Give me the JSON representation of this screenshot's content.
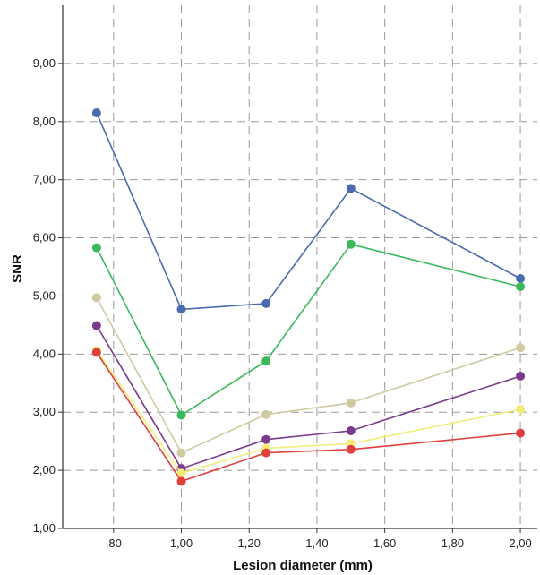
{
  "chart_data": {
    "type": "line",
    "title": "",
    "xlabel": "Lesion diameter (mm)",
    "ylabel": "SNR",
    "x": [
      0.75,
      1.0,
      1.25,
      1.5,
      2.0
    ],
    "xlim": [
      0.65,
      2.05
    ],
    "ylim": [
      1.0,
      10.0
    ],
    "x_ticks": [
      {
        "value": 0.8,
        "label": ",80"
      },
      {
        "value": 1.0,
        "label": "1,00"
      },
      {
        "value": 1.2,
        "label": "1,20"
      },
      {
        "value": 1.4,
        "label": "1,40"
      },
      {
        "value": 1.6,
        "label": "1,60"
      },
      {
        "value": 1.8,
        "label": "1,80"
      },
      {
        "value": 2.0,
        "label": "2,00"
      }
    ],
    "y_ticks": [
      {
        "value": 1,
        "label": "1,00"
      },
      {
        "value": 2,
        "label": "2,00"
      },
      {
        "value": 3,
        "label": "3,00"
      },
      {
        "value": 4,
        "label": "4,00"
      },
      {
        "value": 5,
        "label": "5,00"
      },
      {
        "value": 6,
        "label": "6,00"
      },
      {
        "value": 7,
        "label": "7,00"
      },
      {
        "value": 8,
        "label": "8,00"
      },
      {
        "value": 9,
        "label": "9,00"
      }
    ],
    "grid": "dashed",
    "legend": "none",
    "series": [
      {
        "color": "#4a6bb0",
        "values": [
          8.15,
          4.77,
          4.87,
          6.85,
          5.3
        ]
      },
      {
        "color": "#3ab85a",
        "values": [
          5.83,
          2.95,
          3.88,
          5.89,
          5.16
        ]
      },
      {
        "color": "#cfcaa0",
        "values": [
          4.97,
          2.3,
          2.96,
          3.16,
          4.11
        ]
      },
      {
        "color": "#7a3a8e",
        "values": [
          4.49,
          2.03,
          2.53,
          2.68,
          3.62
        ]
      },
      {
        "color": "#f3ec7a",
        "values": [
          4.06,
          1.95,
          2.38,
          2.46,
          3.05
        ]
      },
      {
        "color": "#e0403c",
        "values": [
          4.03,
          1.81,
          2.3,
          2.36,
          2.64
        ]
      }
    ]
  }
}
